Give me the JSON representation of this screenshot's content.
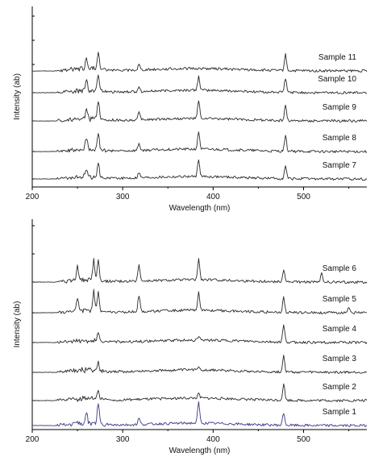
{
  "chart_data": [
    {
      "type": "line",
      "title": "",
      "xlabel": "Wavelength (nm)",
      "ylabel": "Intensity (ab)",
      "xlim": [
        200,
        570
      ],
      "xticks": [
        "200",
        "300",
        "400",
        "500"
      ],
      "grid": false,
      "series": [
        {
          "name": "Sample 11",
          "peaks": [
            [
              260,
              0.6
            ],
            [
              273,
              1.0
            ],
            [
              318,
              0.3
            ],
            [
              480,
              0.9
            ]
          ]
        },
        {
          "name": "Sample 10",
          "peaks": [
            [
              260,
              0.6
            ],
            [
              273,
              1.0
            ],
            [
              318,
              0.3
            ],
            [
              384,
              0.8
            ],
            [
              480,
              0.8
            ]
          ]
        },
        {
          "name": "Sample 9",
          "peaks": [
            [
              260,
              0.7
            ],
            [
              273,
              1.0
            ],
            [
              318,
              0.4
            ],
            [
              384,
              1.0
            ],
            [
              480,
              0.9
            ]
          ]
        },
        {
          "name": "Sample 8",
          "peaks": [
            [
              260,
              0.7
            ],
            [
              273,
              1.0
            ],
            [
              318,
              0.4
            ],
            [
              384,
              1.0
            ],
            [
              480,
              0.9
            ]
          ]
        },
        {
          "name": "Sample 7",
          "peaks": [
            [
              260,
              0.5
            ],
            [
              273,
              0.8
            ],
            [
              318,
              0.3
            ],
            [
              384,
              1.0
            ],
            [
              480,
              0.7
            ]
          ]
        }
      ]
    },
    {
      "type": "line",
      "title": "",
      "xlabel": "Wavelength (nm)",
      "ylabel": "Intensity (ab)",
      "xlim": [
        200,
        570
      ],
      "xticks": [
        "200",
        "300",
        "400",
        "500"
      ],
      "grid": false,
      "series": [
        {
          "name": "Sample 6",
          "peaks": [
            [
              250,
              0.7
            ],
            [
              268,
              1.0
            ],
            [
              273,
              0.9
            ],
            [
              318,
              0.8
            ],
            [
              384,
              1.0
            ],
            [
              478,
              0.6
            ],
            [
              520,
              0.4
            ]
          ]
        },
        {
          "name": "Sample 5",
          "peaks": [
            [
              250,
              0.6
            ],
            [
              268,
              0.9
            ],
            [
              273,
              0.9
            ],
            [
              318,
              0.8
            ],
            [
              384,
              0.9
            ],
            [
              478,
              0.7
            ],
            [
              550,
              0.3
            ]
          ]
        },
        {
          "name": "Sample 4",
          "peaks": [
            [
              273,
              0.4
            ],
            [
              384,
              0.2
            ],
            [
              478,
              0.8
            ]
          ]
        },
        {
          "name": "Sample 3",
          "peaks": [
            [
              273,
              0.4
            ],
            [
              384,
              0.2
            ],
            [
              478,
              0.8
            ]
          ]
        },
        {
          "name": "Sample 2",
          "peaks": [
            [
              273,
              0.4
            ],
            [
              384,
              0.2
            ],
            [
              478,
              0.8
            ]
          ]
        },
        {
          "name": "Sample 1",
          "peaks": [
            [
              260,
              0.5
            ],
            [
              273,
              1.0
            ],
            [
              318,
              0.3
            ],
            [
              384,
              1.0
            ],
            [
              478,
              0.6
            ]
          ]
        }
      ]
    }
  ]
}
